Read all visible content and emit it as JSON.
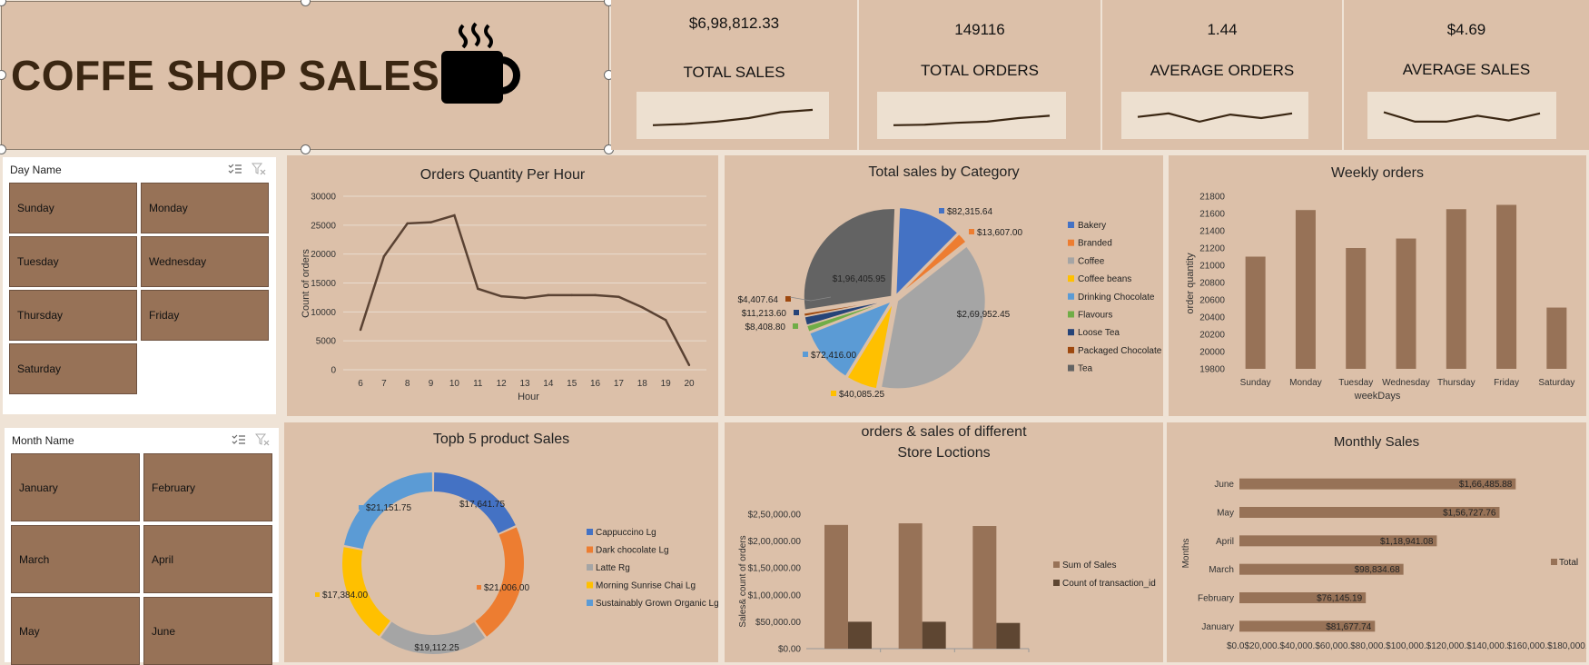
{
  "header": {
    "title": "COFFE SHOP SALES",
    "icon": "coffee-cup-icon"
  },
  "kpis": [
    {
      "value": "$6,98,812.33",
      "label": "TOTAL SALES",
      "spark": [
        0.2,
        0.25,
        0.35,
        0.5,
        0.75,
        0.85
      ]
    },
    {
      "value": "149116",
      "label": "TOTAL ORDERS",
      "spark": [
        0.2,
        0.22,
        0.3,
        0.35,
        0.5,
        0.6
      ]
    },
    {
      "value": "1.44",
      "label": "AVERAGE ORDERS",
      "spark": [
        0.55,
        0.7,
        0.35,
        0.65,
        0.5,
        0.7
      ]
    },
    {
      "value": "$4.69",
      "label": "AVERAGE SALES",
      "spark": [
        0.75,
        0.35,
        0.35,
        0.6,
        0.4,
        0.7
      ]
    }
  ],
  "slicers": {
    "day": {
      "title": "Day Name",
      "items": [
        "Sunday",
        "Monday",
        "Tuesday",
        "Wednesday",
        "Thursday",
        "Friday",
        "Saturday"
      ]
    },
    "month": {
      "title": "Month Name",
      "items": [
        "January",
        "February",
        "March",
        "April",
        "May",
        "June"
      ]
    }
  },
  "colors": {
    "brown": "#977257",
    "dark_brown": "#5e4632",
    "panel": "#dcc0a9",
    "line": "#5a4233"
  },
  "chart_data": [
    {
      "type": "line",
      "title": "Orders Quantity Per Hour",
      "xlabel": "Hour",
      "ylabel": "Count of orders",
      "x": [
        6,
        7,
        8,
        9,
        10,
        11,
        12,
        13,
        14,
        15,
        16,
        17,
        18,
        19,
        20
      ],
      "values": [
        6900,
        19600,
        25300,
        25500,
        26700,
        14000,
        12700,
        12400,
        12900,
        12900,
        12900,
        12600,
        10800,
        8600,
        800
      ],
      "ylim": [
        0,
        30000
      ],
      "yticks": [
        "30000",
        "25000",
        "20000",
        "15000",
        "10000",
        "5000",
        "0"
      ],
      "grid": true
    },
    {
      "type": "pie",
      "title": "Total sales by Category",
      "slices": [
        {
          "name": "Bakery",
          "value": 82315.64,
          "label": "$82,315.64",
          "color": "#4472c4"
        },
        {
          "name": "Branded",
          "value": 13607.0,
          "label": "$13,607.00",
          "color": "#ed7d31"
        },
        {
          "name": "Coffee",
          "value": 269952.45,
          "label": "$2,69,952.45",
          "color": "#a5a5a5"
        },
        {
          "name": "Coffee beans",
          "value": 40085.25,
          "label": "$40,085.25",
          "color": "#ffc000"
        },
        {
          "name": "Drinking Chocolate",
          "value": 72416.0,
          "label": "$72,416.00",
          "color": "#5b9bd5"
        },
        {
          "name": "Flavours",
          "value": 8408.8,
          "label": "$8,408.80",
          "color": "#70ad47"
        },
        {
          "name": "Loose Tea",
          "value": 11213.6,
          "label": "$11,213.60",
          "color": "#264478"
        },
        {
          "name": "Packaged Chocolate",
          "value": 4407.64,
          "label": "$4,407.64",
          "color": "#9e480e"
        },
        {
          "name": "Tea",
          "value": 196405.95,
          "label": "$1,96,405.95",
          "color": "#636363"
        }
      ]
    },
    {
      "type": "bar",
      "title": "Weekly orders",
      "xlabel": "weekDays",
      "ylabel": "order quantity",
      "categories": [
        "Sunday",
        "Monday",
        "Tuesday",
        "Wednesday",
        "Thursday",
        "Friday",
        "Saturday"
      ],
      "values": [
        21100,
        21640,
        21200,
        21310,
        21650,
        21700,
        20510
      ],
      "ylim": [
        19800,
        21800
      ],
      "yticks": [
        "21800",
        "21600",
        "21400",
        "21200",
        "21000",
        "20800",
        "20600",
        "20400",
        "20200",
        "20000",
        "19800"
      ]
    },
    {
      "type": "pie",
      "title": "Topb 5 product Sales",
      "donut": true,
      "slices": [
        {
          "name": "Cappuccino Lg",
          "value": 17641.75,
          "label": "$17,641.75",
          "color": "#4472c4"
        },
        {
          "name": "Dark chocolate Lg",
          "value": 21006.0,
          "label": "$21,006.00",
          "color": "#ed7d31"
        },
        {
          "name": "Latte Rg",
          "value": 19112.25,
          "label": "$19,112.25",
          "color": "#a5a5a5"
        },
        {
          "name": "Morning Sunrise Chai Lg",
          "value": 17384.0,
          "label": "$17,384.00",
          "color": "#ffc000"
        },
        {
          "name": "Sustainably Grown Organic Lg",
          "value": 21151.75,
          "label": "$21,151.75",
          "color": "#5b9bd5"
        }
      ]
    },
    {
      "type": "bar",
      "title": "orders & sales of different Store Loctions",
      "title_lines": [
        "orders & sales of different",
        "Store Loctions"
      ],
      "ylabel": "Sales& count of orders",
      "categories": [
        "",
        "",
        ""
      ],
      "series": [
        {
          "name": "Sum of Sales",
          "values": [
            230000,
            233000,
            228000
          ],
          "color": "#977257"
        },
        {
          "name": "Count of transaction_id",
          "values": [
            50000,
            50000,
            47800
          ],
          "color": "#5e4632"
        }
      ],
      "ylim": [
        0,
        250000
      ],
      "yticks": [
        "$2,50,000.00",
        "$2,00,000.00",
        "$1,50,000.00",
        "$1,00,000.00",
        "$50,000.00",
        "$0.00"
      ]
    },
    {
      "type": "bar",
      "orientation": "horizontal",
      "title": "Monthly Sales",
      "ylabel": "Months",
      "categories": [
        "June",
        "May",
        "April",
        "March",
        "February",
        "January"
      ],
      "series": [
        {
          "name": "Total",
          "values": [
            166485.88,
            156727.76,
            118941.08,
            98834.68,
            76145.19,
            81677.74
          ]
        }
      ],
      "value_labels": [
        "$1,66,485.88",
        "$1,56,727.76",
        "$1,18,941.08",
        "$98,834.68",
        "$76,145.19",
        "$81,677.74"
      ],
      "xlim": [
        0,
        180000
      ],
      "xtick_text": "$0.0$20,000.$40,000.$60,000.$80,000.$100,000.$120,000.$140,000.$160,000.$180,000.00"
    }
  ]
}
